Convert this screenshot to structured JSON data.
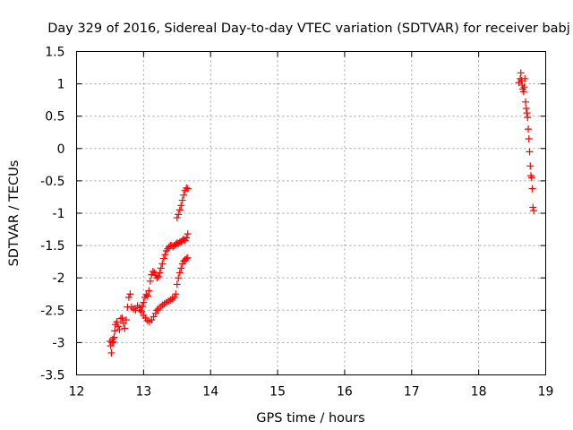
{
  "chart_data": {
    "type": "scatter",
    "title": "Day 329 of 2016, Sidereal Day-to-day VTEC variation (SDTVAR) for receiver babj",
    "xlabel": "GPS time / hours",
    "ylabel": "SDTVAR / TECUs",
    "xlim": [
      12,
      19
    ],
    "ylim": [
      -3.5,
      1.5
    ],
    "xticks": [
      "12",
      "13",
      "14",
      "15",
      "16",
      "17",
      "18",
      "19"
    ],
    "yticks": [
      "1.5",
      "1",
      "0.5",
      "0",
      "-0.5",
      "-1",
      "-1.5",
      "-2",
      "-2.5",
      "-3",
      "-3.5"
    ],
    "grid": true,
    "marker": "plus",
    "color": "#ff0000",
    "series": [
      {
        "points": [
          [
            12.5,
            -2.98
          ],
          [
            12.51,
            -3.05
          ],
          [
            12.52,
            -3.16
          ],
          [
            12.53,
            -3.0
          ],
          [
            12.54,
            -2.95
          ],
          [
            12.55,
            -2.99
          ],
          [
            12.56,
            -2.92
          ],
          [
            12.57,
            -2.82
          ],
          [
            12.58,
            -2.72
          ],
          [
            12.6,
            -2.68
          ],
          [
            12.62,
            -2.75
          ],
          [
            12.64,
            -2.8
          ],
          [
            12.66,
            -2.63
          ],
          [
            12.68,
            -2.62
          ],
          [
            12.7,
            -2.7
          ],
          [
            12.72,
            -2.78
          ],
          [
            12.74,
            -2.65
          ],
          [
            12.76,
            -2.45
          ],
          [
            12.78,
            -2.3
          ],
          [
            12.8,
            -2.25
          ],
          [
            12.82,
            -2.45
          ],
          [
            12.85,
            -2.48
          ],
          [
            12.88,
            -2.5
          ],
          [
            12.91,
            -2.43
          ],
          [
            12.94,
            -2.46
          ],
          [
            12.97,
            -2.52
          ],
          [
            13.0,
            -2.58
          ],
          [
            13.03,
            -2.62
          ],
          [
            13.06,
            -2.66
          ],
          [
            13.09,
            -2.68
          ],
          [
            13.12,
            -2.65
          ],
          [
            13.15,
            -2.6
          ],
          [
            13.18,
            -2.55
          ],
          [
            13.2,
            -2.5
          ],
          [
            13.22,
            -2.48
          ],
          [
            13.25,
            -2.45
          ],
          [
            13.28,
            -2.42
          ],
          [
            13.31,
            -2.4
          ],
          [
            13.34,
            -2.38
          ],
          [
            13.37,
            -2.36
          ],
          [
            13.4,
            -2.34
          ],
          [
            13.43,
            -2.32
          ],
          [
            13.46,
            -2.3
          ],
          [
            13.48,
            -2.25
          ],
          [
            13.5,
            -2.1
          ],
          [
            13.52,
            -2.0
          ],
          [
            13.54,
            -1.92
          ],
          [
            13.56,
            -1.85
          ],
          [
            13.58,
            -1.78
          ],
          [
            13.6,
            -1.74
          ],
          [
            13.62,
            -1.72
          ],
          [
            13.64,
            -1.7
          ],
          [
            13.66,
            -1.69
          ],
          [
            12.95,
            -2.5
          ],
          [
            12.98,
            -2.44
          ],
          [
            13.0,
            -2.38
          ],
          [
            13.02,
            -2.3
          ],
          [
            13.04,
            -2.26
          ],
          [
            13.06,
            -2.28
          ],
          [
            13.08,
            -2.2
          ],
          [
            13.1,
            -2.05
          ],
          [
            13.12,
            -1.95
          ],
          [
            13.14,
            -1.9
          ],
          [
            13.16,
            -1.92
          ],
          [
            13.18,
            -1.96
          ],
          [
            13.2,
            -2.0
          ],
          [
            13.22,
            -1.98
          ],
          [
            13.24,
            -1.92
          ],
          [
            13.26,
            -1.85
          ],
          [
            13.28,
            -1.78
          ],
          [
            13.3,
            -1.7
          ],
          [
            13.32,
            -1.64
          ],
          [
            13.34,
            -1.58
          ],
          [
            13.36,
            -1.55
          ],
          [
            13.38,
            -1.52
          ],
          [
            13.4,
            -1.5
          ],
          [
            13.42,
            -1.5
          ],
          [
            13.44,
            -1.52
          ],
          [
            13.46,
            -1.5
          ],
          [
            13.48,
            -1.48
          ],
          [
            13.5,
            -1.46
          ],
          [
            13.52,
            -1.47
          ],
          [
            13.54,
            -1.45
          ],
          [
            13.56,
            -1.44
          ],
          [
            13.58,
            -1.42
          ],
          [
            13.6,
            -1.4
          ],
          [
            13.62,
            -1.42
          ],
          [
            13.64,
            -1.38
          ],
          [
            13.66,
            -1.32
          ],
          [
            13.5,
            -1.07
          ],
          [
            13.52,
            -1.02
          ],
          [
            13.54,
            -0.95
          ],
          [
            13.56,
            -0.88
          ],
          [
            13.58,
            -0.8
          ],
          [
            13.6,
            -0.72
          ],
          [
            13.62,
            -0.65
          ],
          [
            13.64,
            -0.61
          ],
          [
            13.66,
            -0.62
          ],
          [
            18.6,
            1.02
          ],
          [
            18.62,
            1.08
          ],
          [
            18.63,
            1.17
          ],
          [
            18.64,
            1.05
          ],
          [
            18.65,
            0.98
          ],
          [
            18.66,
            0.92
          ],
          [
            18.67,
            0.88
          ],
          [
            18.68,
            0.95
          ],
          [
            18.69,
            1.08
          ],
          [
            18.7,
            0.72
          ],
          [
            18.71,
            0.62
          ],
          [
            18.72,
            0.55
          ],
          [
            18.73,
            0.48
          ],
          [
            18.74,
            0.3
          ],
          [
            18.75,
            0.15
          ],
          [
            18.76,
            -0.05
          ],
          [
            18.77,
            -0.27
          ],
          [
            18.78,
            -0.42
          ],
          [
            18.79,
            -0.45
          ],
          [
            18.8,
            -0.62
          ],
          [
            18.81,
            -0.91
          ],
          [
            18.82,
            -0.96
          ]
        ]
      }
    ]
  }
}
